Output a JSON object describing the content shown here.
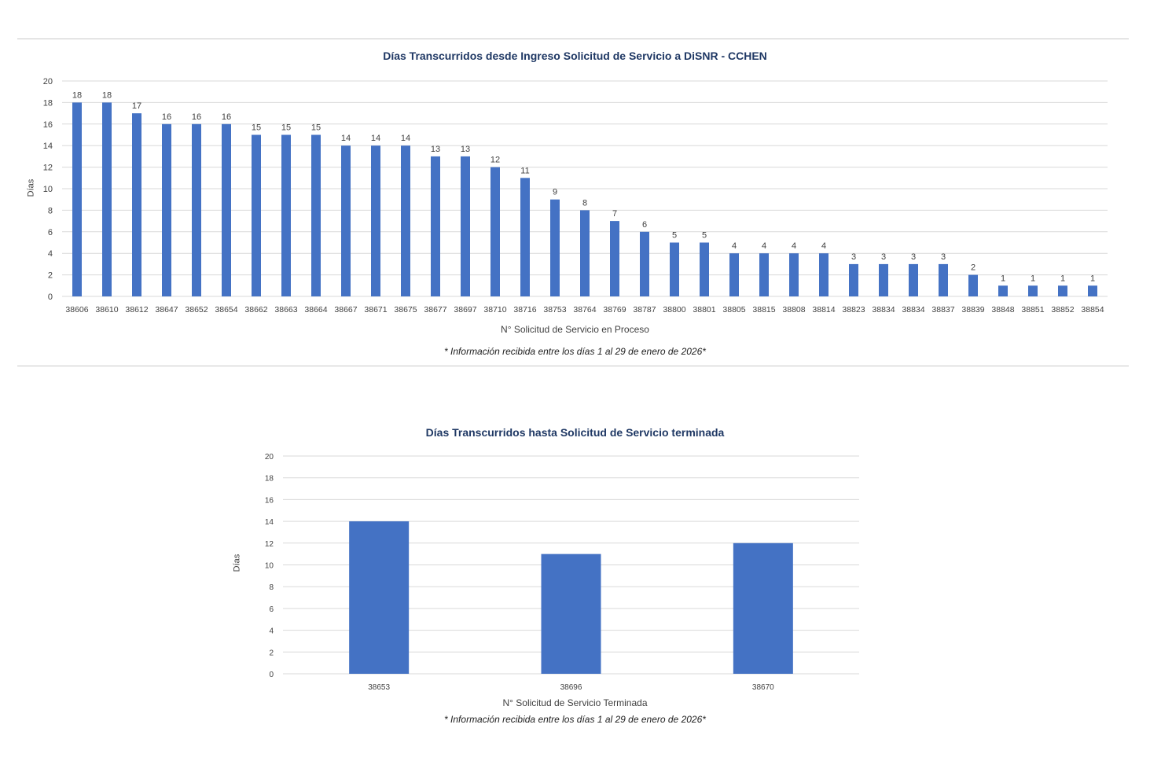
{
  "chart_data": [
    {
      "type": "bar",
      "title": "Días Transcurridos desde Ingreso Solicitud de Servicio a DiSNR - CCHEN",
      "xlabel": "N° Solicitud de Servicio en Proceso",
      "ylabel": "Días",
      "note": "* Información recibida entre los días 1 al 29 de enero de 2026*",
      "ylim": [
        0,
        20
      ],
      "yticks": [
        0,
        2,
        4,
        6,
        8,
        10,
        12,
        14,
        16,
        18,
        20
      ],
      "grid": true,
      "color": "#4472c4",
      "categories": [
        "38606",
        "38610",
        "38612",
        "38647",
        "38652",
        "38654",
        "38662",
        "38663",
        "38664",
        "38667",
        "38671",
        "38675",
        "38677",
        "38697",
        "38710",
        "38716",
        "38753",
        "38764",
        "38769",
        "38787",
        "38800",
        "38801",
        "38805",
        "38815",
        "38808",
        "38814",
        "38823",
        "38834",
        "38834",
        "38837",
        "38839",
        "38848",
        "38851",
        "38852",
        "38854"
      ],
      "values": [
        18,
        18,
        17,
        16,
        16,
        16,
        15,
        15,
        15,
        14,
        14,
        14,
        13,
        13,
        12,
        11,
        9,
        8,
        7,
        6,
        5,
        5,
        4,
        4,
        4,
        4,
        3,
        3,
        3,
        3,
        2,
        1,
        1,
        1,
        1
      ]
    },
    {
      "type": "bar",
      "title": "Días Transcurridos hasta Solicitud de Servicio terminada",
      "xlabel": "N° Solicitud de Servicio Terminada",
      "ylabel": "Días",
      "note": "* Información recibida entre los días 1 al 29 de enero de 2026*",
      "ylim": [
        0,
        20
      ],
      "yticks": [
        0,
        2,
        4,
        6,
        8,
        10,
        12,
        14,
        16,
        18,
        20
      ],
      "grid": true,
      "color": "#4472c4",
      "categories": [
        "38653",
        "38696",
        "38670"
      ],
      "values": [
        14,
        11,
        12
      ]
    }
  ]
}
